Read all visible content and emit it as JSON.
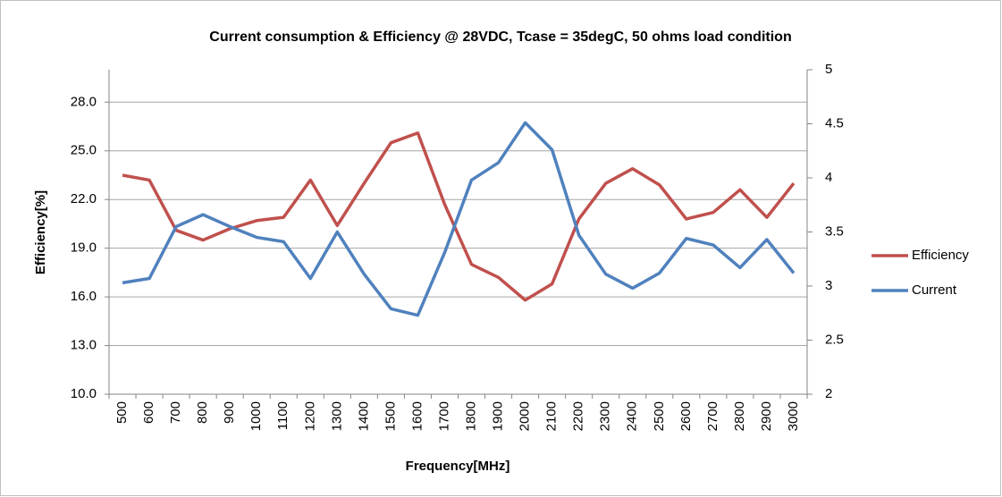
{
  "chart_data": {
    "type": "line",
    "title": "Current consumption & Efficiency @ 28VDC, Tcase = 35degC, 50 ohms load condition",
    "x_label": "Frequency[MHz]",
    "y_label": "Efficiency[%]",
    "categories": [
      "500",
      "600",
      "700",
      "800",
      "900",
      "1000",
      "1100",
      "1200",
      "1300",
      "1400",
      "1500",
      "1600",
      "1700",
      "1800",
      "1900",
      "2000",
      "2100",
      "2200",
      "2300",
      "2400",
      "2500",
      "2600",
      "2700",
      "2800",
      "2900",
      "3000"
    ],
    "series": [
      {
        "name": "Efficiency",
        "color": "#c0504d",
        "axis": "y",
        "values": [
          23.5,
          23.2,
          20.1,
          19.5,
          20.2,
          20.7,
          20.9,
          23.2,
          20.4,
          23.0,
          25.5,
          26.1,
          21.7,
          18.0,
          17.2,
          15.8,
          16.8,
          20.8,
          23.0,
          23.9,
          22.9,
          20.8,
          21.2,
          22.6,
          20.9,
          23.0
        ]
      },
      {
        "name": "Current",
        "color": "#4f81bd",
        "axis": "y2",
        "values": [
          3.03,
          3.07,
          3.55,
          3.66,
          3.55,
          3.45,
          3.41,
          3.07,
          3.5,
          3.11,
          2.79,
          2.73,
          3.31,
          3.98,
          4.14,
          4.51,
          4.26,
          3.47,
          3.11,
          2.98,
          3.12,
          3.44,
          3.38,
          3.17,
          3.43,
          3.12
        ]
      }
    ],
    "ylim": [
      10,
      30
    ],
    "yticks": [
      {
        "value": 10,
        "label": "10.0"
      },
      {
        "value": 13,
        "label": "13.0"
      },
      {
        "value": 16,
        "label": "16.0"
      },
      {
        "value": 19,
        "label": "19.0"
      },
      {
        "value": 22,
        "label": "22.0"
      },
      {
        "value": 25,
        "label": "25.0"
      },
      {
        "value": 28,
        "label": "28.0"
      }
    ],
    "y2lim": [
      2,
      5
    ],
    "y2ticks": [
      2,
      2.5,
      3,
      3.5,
      4,
      4.5,
      5
    ],
    "grid": true,
    "legend": "right"
  }
}
